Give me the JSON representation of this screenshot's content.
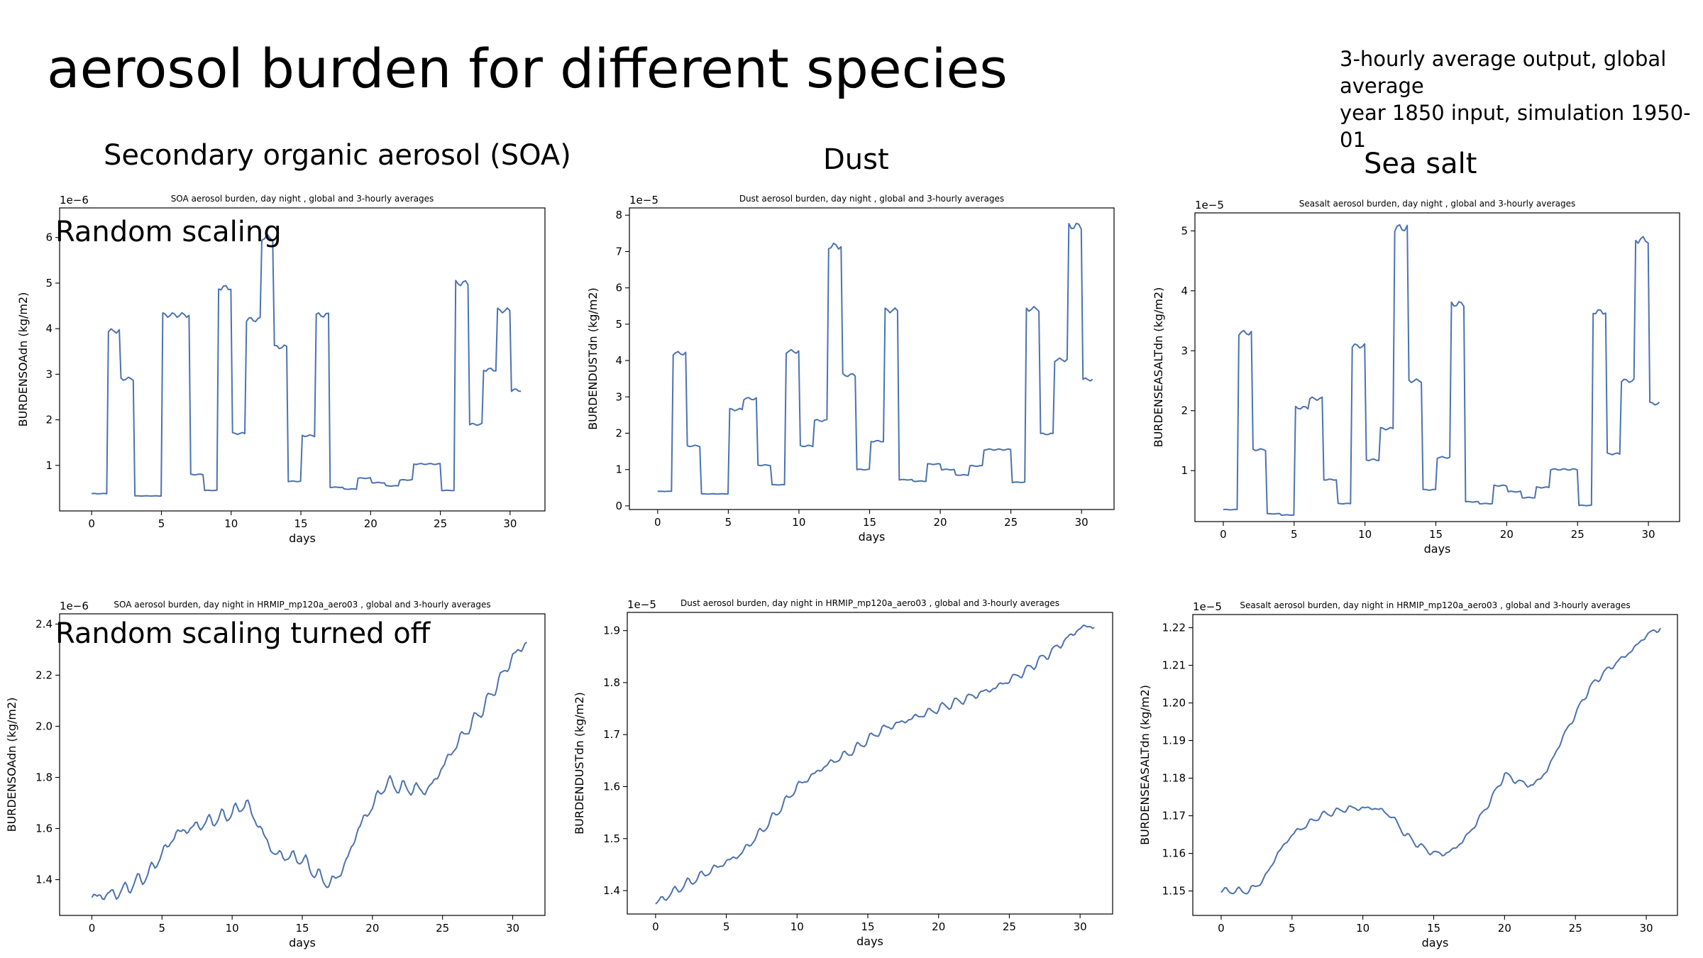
{
  "slide": {
    "title": "aerosol burden for different species",
    "note_line1": "3-hourly average output, global average",
    "note_line2": "year 1850 input, simulation 1950-01",
    "col_titles": [
      "Secondary organic aerosol (SOA)",
      "Dust",
      "Sea salt"
    ],
    "row_labels": [
      "Random scaling",
      "Random scaling turned off"
    ]
  },
  "chart_data": [
    {
      "id": "soa_random",
      "type": "line",
      "title": "SOA aerosol burden, day night , global and 3-hourly averages",
      "xlabel": "days",
      "ylabel": "BURDENSOAdn (kg/m2)",
      "offset_text": "1e−6",
      "xlim": [
        -2.3,
        32.5
      ],
      "ylim": [
        0.0,
        6.65
      ],
      "xticks": [
        0,
        5,
        10,
        15,
        20,
        25,
        30
      ],
      "yticks": [
        1,
        2,
        3,
        4,
        5,
        6
      ],
      "series_color": "#4c72b0",
      "mode": "step",
      "steps": [
        [
          0,
          0.38
        ],
        [
          1.2,
          3.95
        ],
        [
          2.1,
          2.9
        ],
        [
          3.1,
          0.33
        ],
        [
          5.1,
          4.3
        ],
        [
          7.1,
          0.8
        ],
        [
          8.1,
          0.45
        ],
        [
          9.1,
          4.9
        ],
        [
          10.1,
          1.7
        ],
        [
          11.1,
          4.2
        ],
        [
          12.2,
          6.0
        ],
        [
          13.1,
          3.6
        ],
        [
          14.1,
          0.65
        ],
        [
          15.1,
          1.65
        ],
        [
          16.1,
          4.3
        ],
        [
          17.1,
          0.52
        ],
        [
          18.1,
          0.48
        ],
        [
          19.1,
          0.72
        ],
        [
          20.1,
          0.62
        ],
        [
          21.1,
          0.55
        ],
        [
          22.1,
          0.68
        ],
        [
          23.1,
          1.03
        ],
        [
          25.1,
          0.45
        ],
        [
          26.1,
          5.0
        ],
        [
          27.1,
          1.9
        ],
        [
          28.1,
          3.1
        ],
        [
          29.1,
          4.4
        ],
        [
          30.1,
          2.65
        ]
      ],
      "x_end": 30.9
    },
    {
      "id": "dust_random",
      "type": "line",
      "title": "Dust aerosol burden, day night , global and 3-hourly averages",
      "xlabel": "days",
      "ylabel": "BURDENDUSTdn (kg/m2)",
      "offset_text": "1e−5",
      "xlim": [
        -2.0,
        32.3
      ],
      "ylim": [
        -0.1,
        8.2
      ],
      "xticks": [
        0,
        5,
        10,
        15,
        20,
        25,
        30
      ],
      "yticks": [
        0,
        1,
        2,
        3,
        4,
        5,
        6,
        7,
        8
      ],
      "series_color": "#4c72b0",
      "mode": "step",
      "steps": [
        [
          0,
          0.4
        ],
        [
          1.1,
          4.2
        ],
        [
          2.1,
          1.65
        ],
        [
          3.1,
          0.33
        ],
        [
          5.1,
          2.65
        ],
        [
          6.1,
          2.95
        ],
        [
          7.1,
          1.12
        ],
        [
          8.1,
          0.58
        ],
        [
          9.1,
          4.25
        ],
        [
          10.1,
          1.65
        ],
        [
          11.1,
          2.35
        ],
        [
          12.1,
          7.15
        ],
        [
          13.1,
          3.6
        ],
        [
          14.1,
          1.0
        ],
        [
          15.1,
          1.78
        ],
        [
          16.1,
          5.38
        ],
        [
          17.1,
          0.72
        ],
        [
          18.1,
          0.68
        ],
        [
          19.1,
          1.15
        ],
        [
          20.1,
          1.0
        ],
        [
          21.1,
          0.85
        ],
        [
          22.1,
          1.1
        ],
        [
          23.1,
          1.55
        ],
        [
          25.1,
          0.65
        ],
        [
          26.1,
          5.42
        ],
        [
          27.1,
          1.98
        ],
        [
          28.1,
          4.02
        ],
        [
          29.1,
          7.7
        ],
        [
          30.1,
          3.48
        ]
      ],
      "x_end": 30.9
    },
    {
      "id": "seasalt_random",
      "type": "line",
      "title": "Seasalt aerosol burden, day night , global and 3-hourly averages",
      "xlabel": "days",
      "ylabel": "BURDENSEASALTdn (kg/m2)",
      "offset_text": "1e−5",
      "xlim": [
        -2.0,
        32.2
      ],
      "ylim": [
        0.15,
        5.3
      ],
      "xticks": [
        0,
        5,
        10,
        15,
        20,
        25,
        30
      ],
      "yticks": [
        1,
        2,
        3,
        4,
        5
      ],
      "series_color": "#4c72b0",
      "mode": "step",
      "steps": [
        [
          0,
          0.35
        ],
        [
          1.1,
          3.3
        ],
        [
          2.1,
          1.35
        ],
        [
          3.1,
          0.28
        ],
        [
          4.1,
          0.26
        ],
        [
          5.1,
          2.05
        ],
        [
          6.1,
          2.2
        ],
        [
          7.1,
          0.85
        ],
        [
          8.1,
          0.45
        ],
        [
          9.1,
          3.08
        ],
        [
          10.1,
          1.18
        ],
        [
          11.1,
          1.7
        ],
        [
          12.1,
          5.05
        ],
        [
          13.1,
          2.5
        ],
        [
          14.1,
          0.68
        ],
        [
          15.1,
          1.22
        ],
        [
          16.1,
          3.78
        ],
        [
          17.1,
          0.48
        ],
        [
          18.1,
          0.45
        ],
        [
          19.1,
          0.75
        ],
        [
          20.1,
          0.65
        ],
        [
          21.1,
          0.55
        ],
        [
          22.1,
          0.72
        ],
        [
          23.1,
          1.02
        ],
        [
          25.1,
          0.42
        ],
        [
          26.1,
          3.65
        ],
        [
          27.1,
          1.28
        ],
        [
          28.1,
          2.5
        ],
        [
          29.1,
          4.85
        ],
        [
          30.1,
          2.12
        ]
      ],
      "x_end": 30.9
    },
    {
      "id": "soa_off",
      "type": "line",
      "title": "SOA aerosol burden, day night in HRMIP_mp120a_aero03 , global and 3-hourly averages",
      "xlabel": "days",
      "ylabel": "BURDENSOAdn (kg/m2)",
      "offset_text": "1e−6",
      "xlim": [
        -2.3,
        32.3
      ],
      "ylim": [
        1.26,
        2.44
      ],
      "xticks": [
        0,
        5,
        10,
        15,
        20,
        25,
        30
      ],
      "yticks": [
        1.4,
        1.6,
        1.8,
        2.0,
        2.2,
        2.4
      ],
      "series_color": "#4c72b0",
      "mode": "wavy",
      "trend": [
        [
          0,
          1.33
        ],
        [
          2,
          1.35
        ],
        [
          4,
          1.42
        ],
        [
          6,
          1.58
        ],
        [
          8,
          1.62
        ],
        [
          10,
          1.66
        ],
        [
          11,
          1.7
        ],
        [
          13,
          1.5
        ],
        [
          15,
          1.48
        ],
        [
          16,
          1.42
        ],
        [
          17,
          1.38
        ],
        [
          18,
          1.45
        ],
        [
          19,
          1.6
        ],
        [
          21,
          1.78
        ],
        [
          22,
          1.76
        ],
        [
          24,
          1.75
        ],
        [
          26,
          1.93
        ],
        [
          28,
          2.08
        ],
        [
          30,
          2.27
        ],
        [
          31,
          2.33
        ]
      ],
      "wiggle": 0.022
    },
    {
      "id": "dust_off",
      "type": "line",
      "title": "Dust aerosol burden, day night in HRMIP_mp120a_aero03 , global and 3-hourly averages",
      "xlabel": "days",
      "ylabel": "BURDENDUSTdn (kg/m2)",
      "offset_text": "1e−5",
      "xlim": [
        -2.0,
        32.3
      ],
      "ylim": [
        1.355,
        1.935
      ],
      "xticks": [
        0,
        5,
        10,
        15,
        20,
        25,
        30
      ],
      "yticks": [
        1.4,
        1.5,
        1.6,
        1.7,
        1.8,
        1.9
      ],
      "series_color": "#4c72b0",
      "mode": "wavy",
      "trend": [
        [
          0,
          1.375
        ],
        [
          2,
          1.41
        ],
        [
          4,
          1.44
        ],
        [
          6,
          1.47
        ],
        [
          8,
          1.53
        ],
        [
          10,
          1.6
        ],
        [
          12,
          1.64
        ],
        [
          14,
          1.67
        ],
        [
          16,
          1.71
        ],
        [
          18,
          1.73
        ],
        [
          20,
          1.75
        ],
        [
          22,
          1.77
        ],
        [
          24,
          1.79
        ],
        [
          26,
          1.82
        ],
        [
          28,
          1.86
        ],
        [
          30,
          1.905
        ],
        [
          31,
          1.91
        ]
      ],
      "wiggle": 0.007
    },
    {
      "id": "seasalt_off",
      "type": "line",
      "title": "Seasalt aerosol burden, day night in HRMIP_mp120a_aero03 , global and 3-hourly averages",
      "xlabel": "days",
      "ylabel": "BURDENSEASALTdn (kg/m2)",
      "offset_text": "1e−5",
      "xlim": [
        -2.0,
        32.2
      ],
      "ylim": [
        1.1435,
        1.2235
      ],
      "xticks": [
        0,
        5,
        10,
        15,
        20,
        25,
        30
      ],
      "yticks": [
        1.15,
        1.16,
        1.17,
        1.18,
        1.19,
        1.2,
        1.21,
        1.22
      ],
      "series_color": "#4c72b0",
      "mode": "wavy",
      "trend": [
        [
          0,
          1.15
        ],
        [
          2,
          1.15
        ],
        [
          3,
          1.153
        ],
        [
          4,
          1.16
        ],
        [
          5,
          1.165
        ],
        [
          7,
          1.17
        ],
        [
          9,
          1.172
        ],
        [
          11,
          1.172
        ],
        [
          12,
          1.17
        ],
        [
          13,
          1.165
        ],
        [
          14,
          1.162
        ],
        [
          15,
          1.16
        ],
        [
          16,
          1.16
        ],
        [
          17,
          1.163
        ],
        [
          18,
          1.168
        ],
        [
          19,
          1.174
        ],
        [
          20,
          1.181
        ],
        [
          21,
          1.179
        ],
        [
          22,
          1.178
        ],
        [
          23,
          1.182
        ],
        [
          24,
          1.19
        ],
        [
          25,
          1.197
        ],
        [
          26,
          1.204
        ],
        [
          27,
          1.208
        ],
        [
          28,
          1.211
        ],
        [
          29,
          1.214
        ],
        [
          30,
          1.218
        ],
        [
          31,
          1.22
        ]
      ],
      "wiggle": 0.0007
    }
  ]
}
